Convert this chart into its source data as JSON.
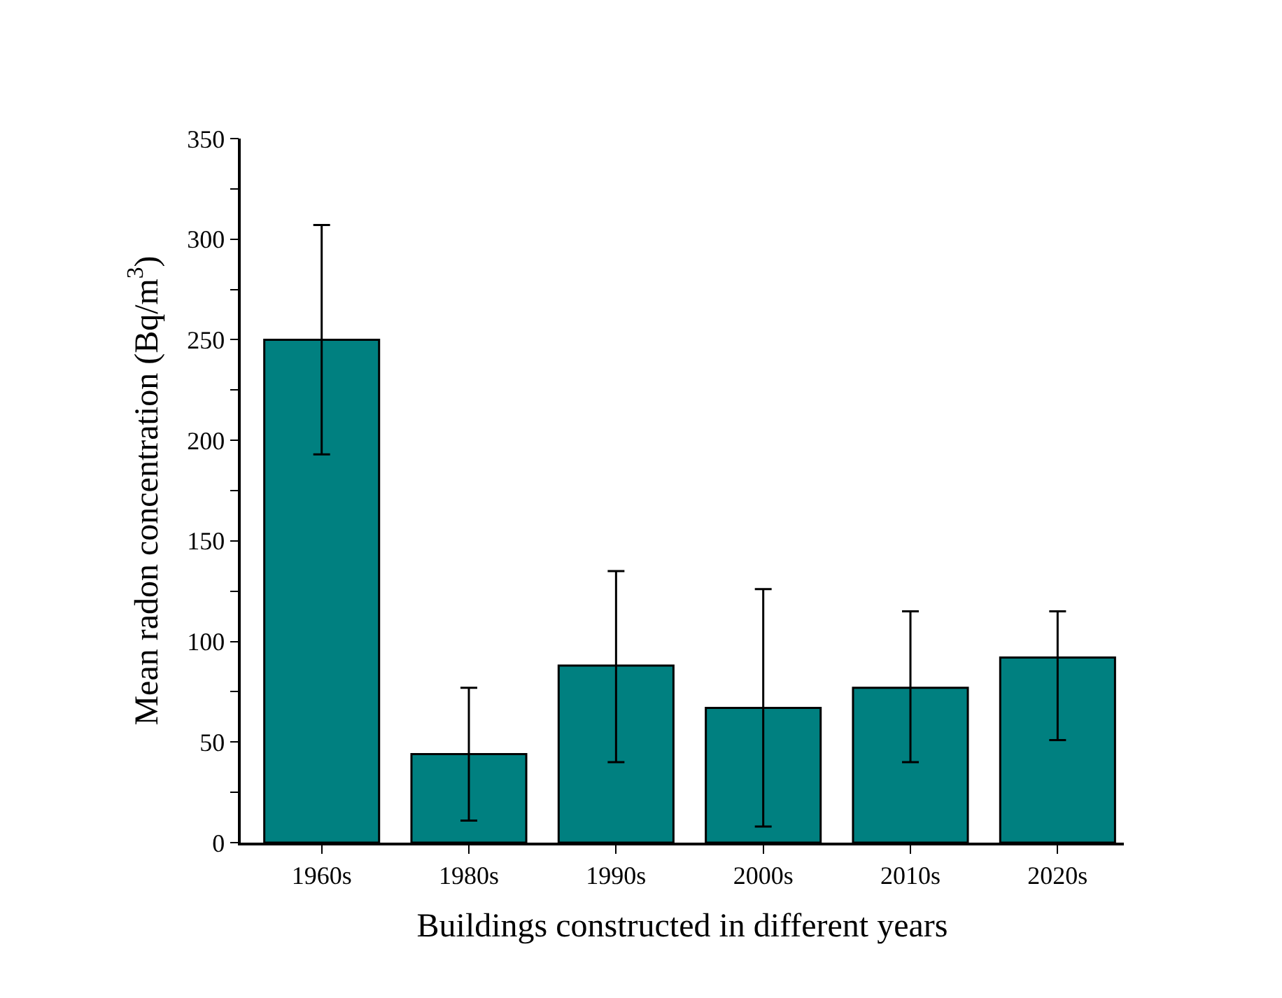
{
  "chart_data": {
    "type": "bar",
    "xlabel": "Buildings constructed in different years",
    "ylabel": "Mean radon concentration (Bq/m$^{3}$)",
    "categories": [
      "1960s",
      "1980s",
      "1990s",
      "2000s",
      "2010s",
      "2020s"
    ],
    "values": [
      250,
      44,
      88,
      67,
      77,
      92
    ],
    "errors": [
      [
        193,
        307
      ],
      [
        11,
        77
      ],
      [
        40,
        135
      ],
      [
        8,
        126
      ],
      [
        40,
        115
      ],
      [
        51,
        115
      ]
    ],
    "color": "#008080",
    "yticks": [
      0,
      {
        "value": 25,
        "label": null
      },
      50,
      {
        "value": 75,
        "label": null
      },
      100,
      {
        "value": 125,
        "label": null
      },
      150,
      {
        "value": 175,
        "label": null
      },
      200,
      {
        "value": 225,
        "label": null
      },
      250,
      {
        "value": 275,
        "label": null
      },
      300,
      {
        "value": 325,
        "label": null
      },
      350
    ],
    "ylim": [
      0,
      350
    ]
  }
}
